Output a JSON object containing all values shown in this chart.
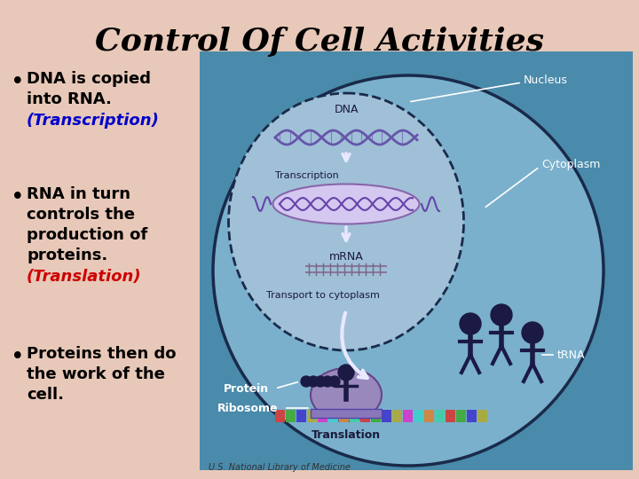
{
  "title": "Control Of Cell Activities",
  "title_fontsize": 26,
  "title_color": "#000000",
  "title_fontweight": "bold",
  "bg_color": "#e8c8b8",
  "bullet_points": [
    {
      "main_text": "DNA is copied\ninto RNA.",
      "highlight_text": "(Transcription)",
      "highlight_color": "#0000cc"
    },
    {
      "main_text": "RNA in turn\ncontrols the\nproduction of\nproteins.",
      "highlight_text": "(Translation)",
      "highlight_color": "#cc0000"
    },
    {
      "main_text": "Proteins then do\nthe work of the\ncell.",
      "highlight_text": null,
      "highlight_color": null
    }
  ],
  "bullet_fontsize": 13,
  "bullet_color": "#000000",
  "bullet_fontweight": "bold",
  "caption": "U.S. National Library of Medicine",
  "caption_fontsize": 7,
  "caption_color": "#333333",
  "cell_bg_outer": "#4a8aaa",
  "cell_bg_inner_nucleus": "#a0c0d8",
  "cell_bg_outer_cell": "#7ab0cc",
  "cell_edge_color": "#1a2a4a",
  "nucleus_label": "Nucleus",
  "cytoplasm_label": "Cytoplasm",
  "dna_label": "DNA",
  "transcription_label": "Transcription",
  "mrna_label": "mRNA",
  "transport_label": "Transport to cytoplasm",
  "translation_label": "Translation",
  "protein_label": "Protein",
  "ribosome_label": "Ribosome",
  "trna_label": "tRNA",
  "label_color_white": "#ffffff",
  "label_color_dark": "#1a1a3a",
  "dna_color1": "#6655aa",
  "dna_color2": "#6655aa",
  "arrow_color": "#e8e8ff",
  "mrna_strand_color": "#aa6633",
  "mrna_fill": "#cc8855",
  "figure_color": "#1a1a44",
  "ribosome_fill": "#9988bb",
  "translation_bar_colors": [
    "#cc4444",
    "#44aa44",
    "#4444cc",
    "#aaaa44",
    "#cc44cc",
    "#44cccc",
    "#cc8844",
    "#44ccaa"
  ]
}
